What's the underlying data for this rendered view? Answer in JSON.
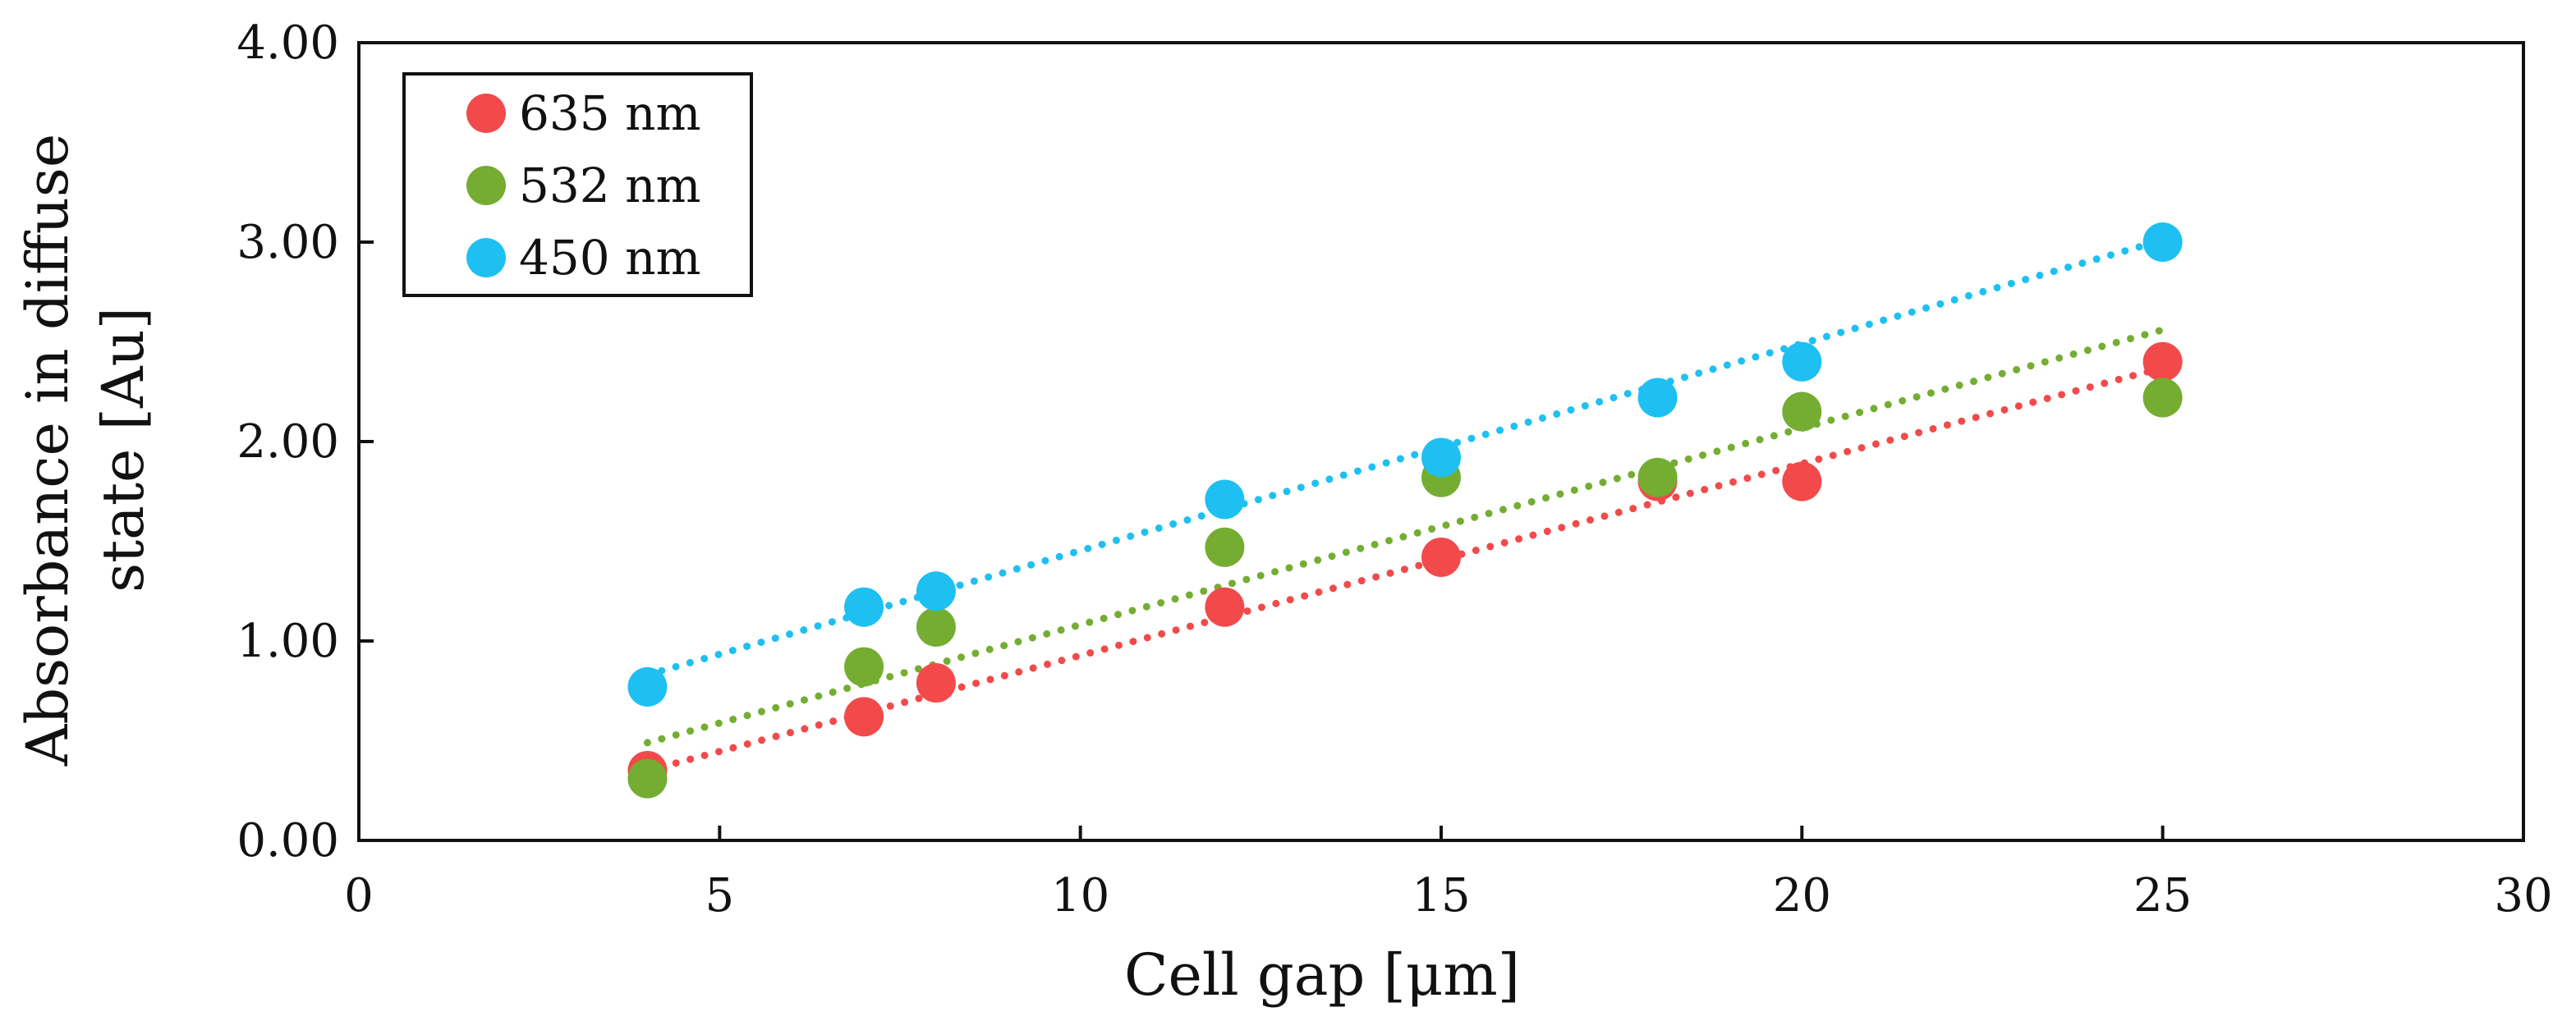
{
  "chart_data": {
    "type": "scatter",
    "xlabel": "Cell gap [μm]",
    "ylabel_lines": [
      "Absorbance in diffuse",
      "state [Au]"
    ],
    "xlim": [
      0,
      30
    ],
    "ylim": [
      0,
      4
    ],
    "x_ticks": [
      0,
      5,
      10,
      15,
      20,
      25,
      30
    ],
    "x_tick_labels": [
      "0",
      "5",
      "10",
      "15",
      "20",
      "25",
      "30"
    ],
    "y_ticks": [
      0,
      1,
      2,
      3,
      4
    ],
    "y_tick_labels": [
      "0.00",
      "1.00",
      "2.00",
      "3.00",
      "4.00"
    ],
    "grid": false,
    "legend_position": "top-left",
    "trendline_style": "dotted linear fit",
    "series": [
      {
        "name": "635 nm",
        "color": "#f24a4a",
        "points": [
          [
            4,
            0.35
          ],
          [
            7,
            0.62
          ],
          [
            8,
            0.79
          ],
          [
            12,
            1.17
          ],
          [
            15,
            1.42
          ],
          [
            18,
            1.8
          ],
          [
            20,
            1.8
          ],
          [
            25,
            2.4
          ]
        ],
        "trend": [
          [
            4,
            0.35
          ],
          [
            25,
            2.37
          ]
        ]
      },
      {
        "name": "532 nm",
        "color": "#74ad32",
        "points": [
          [
            4,
            0.31
          ],
          [
            7,
            0.87
          ],
          [
            8,
            1.07
          ],
          [
            12,
            1.47
          ],
          [
            15,
            1.82
          ],
          [
            18,
            1.82
          ],
          [
            20,
            2.15
          ],
          [
            25,
            2.22
          ]
        ],
        "trend": [
          [
            4,
            0.49
          ],
          [
            25,
            2.56
          ]
        ]
      },
      {
        "name": "450 nm",
        "color": "#1ec0f2",
        "points": [
          [
            4,
            0.77
          ],
          [
            7,
            1.17
          ],
          [
            8,
            1.25
          ],
          [
            12,
            1.71
          ],
          [
            15,
            1.92
          ],
          [
            18,
            2.22
          ],
          [
            20,
            2.4
          ],
          [
            25,
            3.0
          ]
        ],
        "trend": [
          [
            4,
            0.83
          ],
          [
            25,
            3.01
          ]
        ]
      }
    ]
  }
}
